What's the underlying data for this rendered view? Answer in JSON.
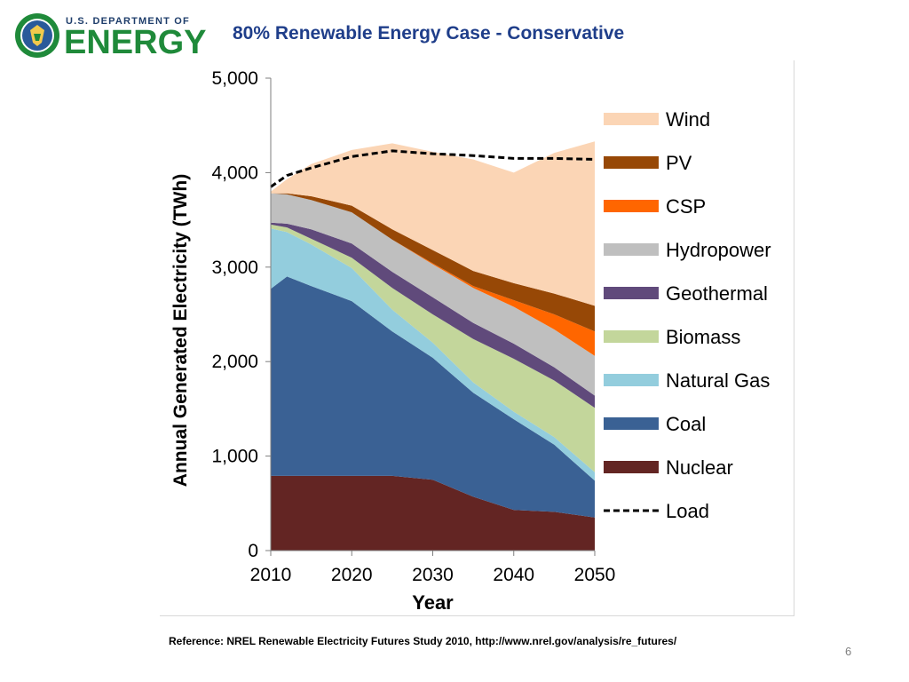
{
  "header": {
    "logo_top_text": "U.S. DEPARTMENT OF",
    "logo_main_text": "ENERGY",
    "title": "80% Renewable Energy Case - Conservative"
  },
  "chart_data": {
    "type": "area",
    "title": "80% Renewable Energy Case - Conservative",
    "xlabel": "Year",
    "ylabel": "Annual Generated Electricity (TWh)",
    "x": [
      2010,
      2012,
      2015,
      2020,
      2025,
      2030,
      2035,
      2040,
      2045,
      2050
    ],
    "xticks": [
      "2010",
      "2020",
      "2030",
      "2040",
      "2050"
    ],
    "yticks": [
      "0",
      "1,000",
      "2,000",
      "3,000",
      "4,000",
      "5,000"
    ],
    "xlim": [
      2010,
      2050
    ],
    "ylim": [
      0,
      5000
    ],
    "series": [
      {
        "name": "Nuclear",
        "color": "#632523",
        "values": [
          790,
          790,
          790,
          790,
          790,
          750,
          570,
          430,
          410,
          350
        ]
      },
      {
        "name": "Coal",
        "color": "#3a6194",
        "values": [
          1980,
          2110,
          2010,
          1850,
          1530,
          1290,
          1100,
          960,
          710,
          390
        ]
      },
      {
        "name": "Natural Gas",
        "color": "#93cddd",
        "values": [
          640,
          470,
          440,
          350,
          230,
          160,
          110,
          80,
          80,
          90
        ]
      },
      {
        "name": "Biomass",
        "color": "#c3d69b",
        "values": [
          40,
          50,
          60,
          110,
          230,
          300,
          460,
          560,
          600,
          680
        ]
      },
      {
        "name": "Geothermal",
        "color": "#604a7b",
        "values": [
          20,
          40,
          100,
          150,
          170,
          180,
          170,
          160,
          140,
          130
        ]
      },
      {
        "name": "Hydropower",
        "color": "#bfbfbf",
        "values": [
          310,
          310,
          310,
          330,
          340,
          350,
          370,
          390,
          400,
          420
        ]
      },
      {
        "name": "CSP",
        "color": "#ff6600",
        "values": [
          0,
          0,
          0,
          0,
          0,
          10,
          20,
          70,
          160,
          260
        ]
      },
      {
        "name": "PV",
        "color": "#974806",
        "values": [
          0,
          10,
          40,
          70,
          110,
          140,
          160,
          180,
          220,
          270
        ]
      },
      {
        "name": "Wind",
        "color": "#fbd5b5",
        "values": [
          20,
          150,
          340,
          590,
          910,
          1040,
          1180,
          1170,
          1490,
          1740
        ]
      },
      {
        "name": "Load",
        "color": "#000000",
        "style": "dashed",
        "values": [
          3850,
          3970,
          4050,
          4170,
          4230,
          4200,
          4180,
          4150,
          4150,
          4140
        ]
      }
    ],
    "legend": [
      "Wind",
      "PV",
      "CSP",
      "Hydropower",
      "Geothermal",
      "Biomass",
      "Natural Gas",
      "Coal",
      "Nuclear",
      "Load"
    ],
    "legend_position": "right"
  },
  "footer": {
    "reference": "Reference:  NREL Renewable Electricity Futures Study 2010, http://www.nrel.gov/analysis/re_futures/",
    "page_number": "6"
  }
}
